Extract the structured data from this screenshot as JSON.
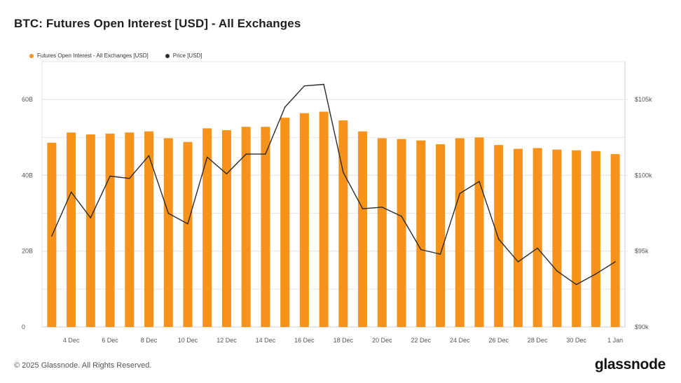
{
  "title": "BTC: Futures Open Interest [USD] - All Exchanges",
  "footer": "© 2025 Glassnode. All Rights Reserved.",
  "brand": "glassnode",
  "colors": {
    "bar": "#f7931a",
    "line": "#2b2b2b",
    "grid": "#e6e6e6"
  },
  "chart_data": {
    "type": "bar",
    "legend_position": "top-left",
    "grid": true,
    "series": [
      {
        "name": "Futures Open Interest - All Exchanges [USD]",
        "type": "bar",
        "axis": "left",
        "values": [
          48.6,
          51.3,
          50.8,
          51.0,
          51.3,
          51.6,
          49.8,
          48.8,
          52.4,
          51.9,
          52.8,
          52.8,
          55.2,
          56.4,
          56.8,
          54.5,
          51.6,
          49.8,
          49.6,
          49.2,
          48.2,
          49.8,
          50.0,
          48.0,
          47.0,
          47.2,
          46.8,
          46.6,
          46.4,
          45.6
        ]
      },
      {
        "name": "Price [USD]",
        "type": "line",
        "axis": "right",
        "values": [
          96000,
          98900,
          97200,
          99950,
          99800,
          101300,
          97500,
          96800,
          101200,
          100100,
          101400,
          101400,
          104500,
          105900,
          106000,
          100200,
          97800,
          97900,
          97300,
          95100,
          94800,
          98800,
          99600,
          95800,
          94300,
          95200,
          93700,
          92800,
          93500,
          94300
        ]
      }
    ],
    "x_tick_labels": [
      "4 Dec",
      "6 Dec",
      "8 Dec",
      "10 Dec",
      "12 Dec",
      "14 Dec",
      "16 Dec",
      "18 Dec",
      "20 Dec",
      "22 Dec",
      "24 Dec",
      "26 Dec",
      "28 Dec",
      "30 Dec",
      "1 Jan"
    ],
    "left_axis": {
      "ylim": [
        0,
        70
      ],
      "ticks": [
        0,
        20,
        40,
        60
      ],
      "tick_labels": [
        "0",
        "20B",
        "40B",
        "60B"
      ]
    },
    "right_axis": {
      "ylim": [
        90000,
        107500
      ],
      "ticks": [
        90000,
        95000,
        100000,
        105000
      ],
      "tick_labels": [
        "$90k",
        "$95k",
        "$100k",
        "$105k"
      ]
    }
  }
}
